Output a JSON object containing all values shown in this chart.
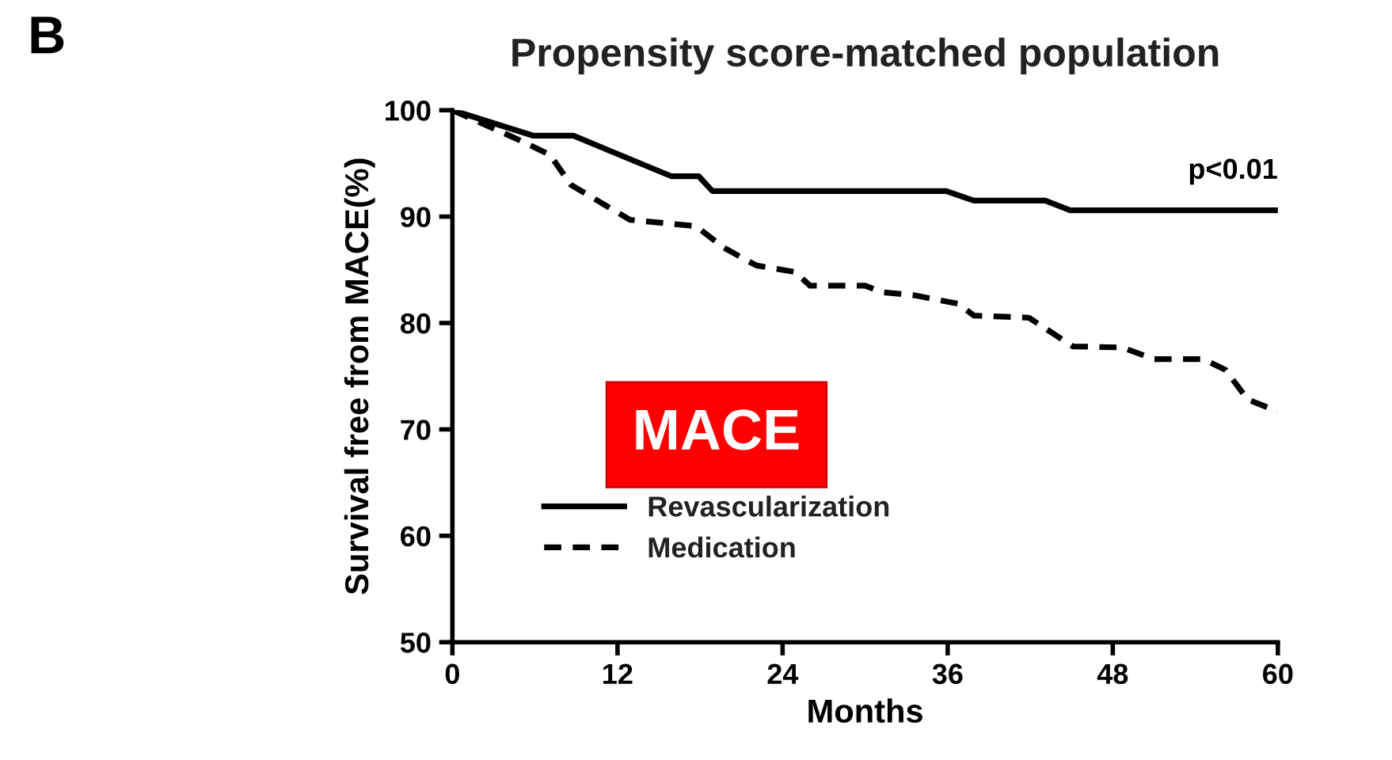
{
  "chart_data": {
    "type": "line",
    "title": "Propensity score-matched population",
    "xlabel": "Months",
    "ylabel": "Survival free from MACE(%)",
    "annotations": [
      "B",
      "MACE",
      "p<0.01"
    ],
    "xlim": [
      0,
      60
    ],
    "xticks": [
      0,
      12,
      24,
      36,
      48,
      60
    ],
    "ylim": [
      50,
      100
    ],
    "yticks": [
      50,
      60,
      70,
      80,
      90,
      100
    ],
    "grid": false,
    "legend": "bottom left",
    "marker": "none",
    "series": [
      {
        "name": "Revascularization",
        "color": "#000000",
        "line_style": "solid",
        "x": [
          0,
          5.9,
          8.8,
          15.9,
          17.9,
          18.9,
          35.9,
          37.9,
          43.1,
          44.9,
          60
        ],
        "values": [
          100,
          97.6,
          97.6,
          93.8,
          93.8,
          92.4,
          92.4,
          91.5,
          91.5,
          90.6,
          90.6
        ]
      },
      {
        "name": "Medication",
        "color": "#000000",
        "line_style": "dashed",
        "x": [
          0,
          5.2,
          7.1,
          8.6,
          12.9,
          17.7,
          19.7,
          22.1,
          24.9,
          26.0,
          30.0,
          31.2,
          33.6,
          36.8,
          37.9,
          41.9,
          45.1,
          48.7,
          51.0,
          54.6,
          56.2,
          57.8,
          60
        ],
        "values": [
          100,
          97,
          95.8,
          93,
          89.7,
          89.1,
          87.1,
          85.4,
          84.8,
          83.5,
          83.5,
          82.9,
          82.6,
          81.8,
          80.7,
          80.5,
          77.8,
          77.7,
          76.6,
          76.6,
          75.6,
          72.8,
          71.7
        ]
      }
    ]
  }
}
